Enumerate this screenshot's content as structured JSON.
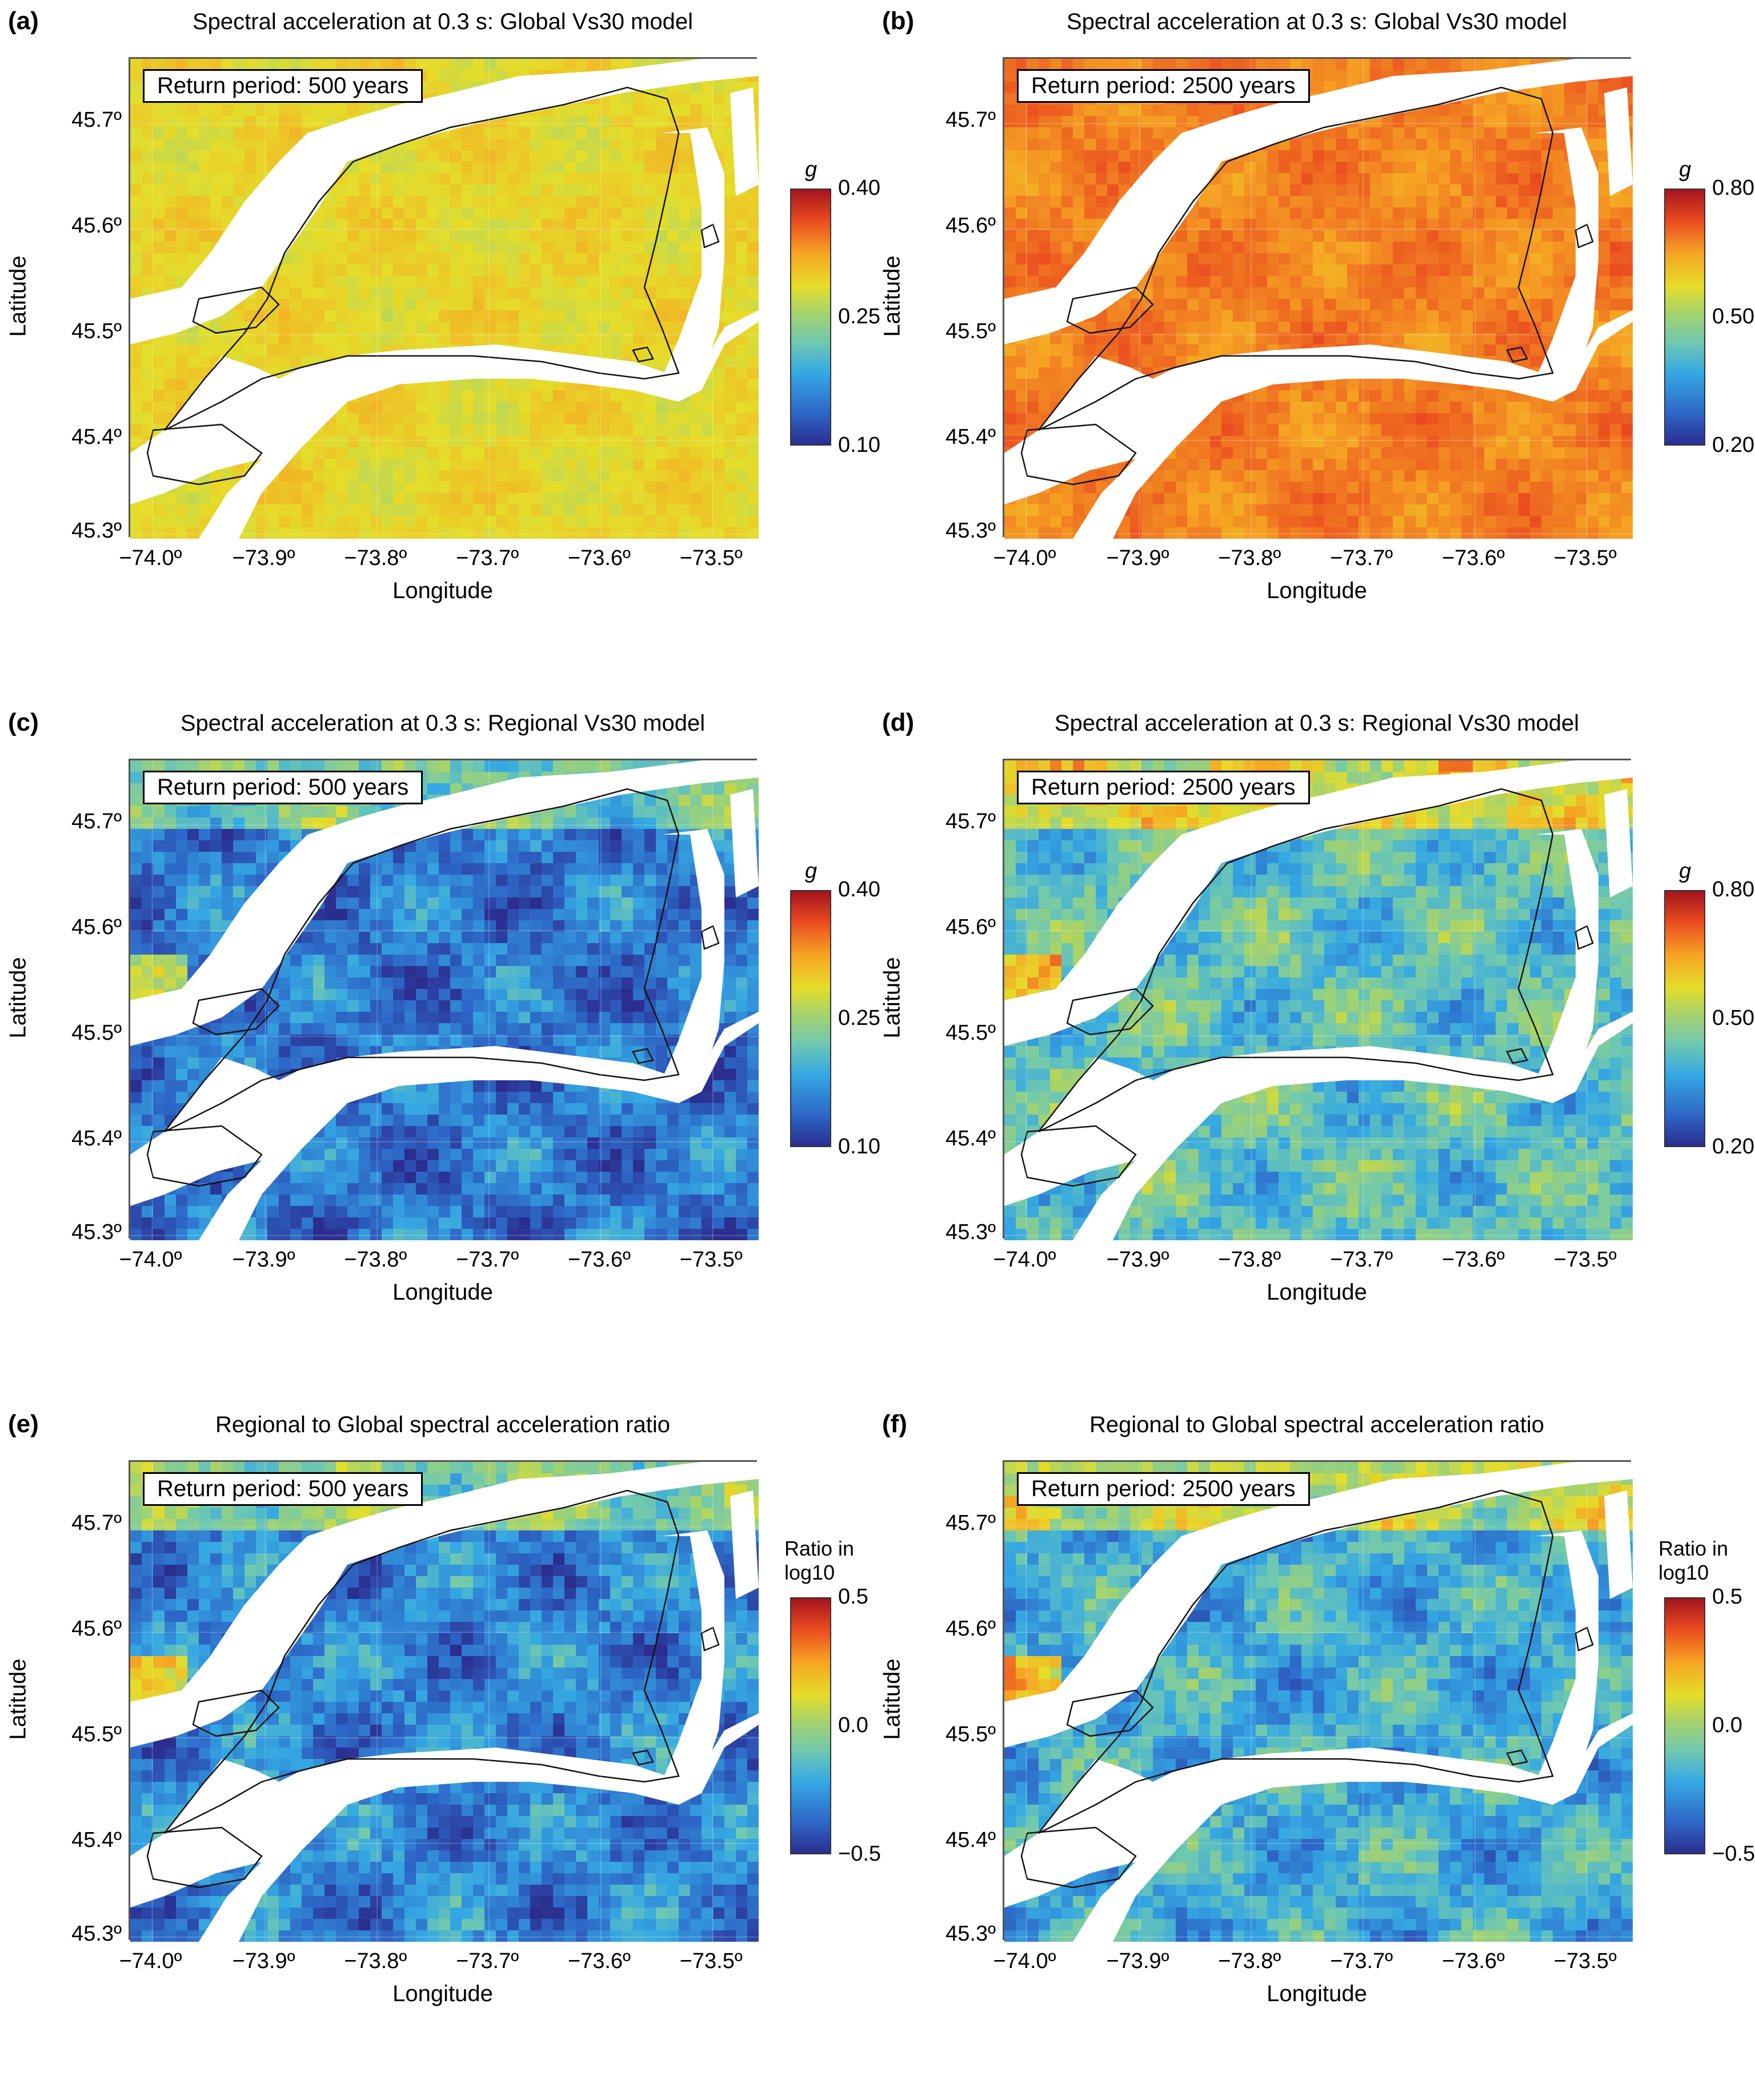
{
  "palette": {
    "jet_low": "#2b2e8f",
    "jet_mid": "#a7d36a",
    "jet_high": "#a3141e",
    "global500": "#c9dd3c",
    "global2500": "#ee6a27",
    "regional500": "#3552b5",
    "regional2500": "#56bde0",
    "ratio500": "#3f7fd0",
    "ratio2500": "#5cb6e6",
    "water": "#ffffff"
  },
  "common": {
    "x_axis_label": "Longitude",
    "y_axis_label": "Latitude",
    "x_ticks": [
      "−74.0º",
      "−73.9º",
      "−73.8º",
      "−73.7º",
      "−73.6º",
      "−73.5º"
    ],
    "y_ticks": [
      "45.7º",
      "45.6º",
      "45.5º",
      "45.4º",
      "45.3º"
    ]
  },
  "chart_data": [
    {
      "type": "heatmap",
      "panel": "(a)",
      "title": "Spectral acceleration at 0.3 s: Global Vs30 model",
      "return_period": "Return period: 500 years",
      "xlabel": "Longitude",
      "ylabel": "Latitude",
      "xlim": [
        -74.02,
        -73.45
      ],
      "ylim": [
        45.29,
        45.75
      ],
      "colorbar": {
        "unit": "g",
        "ticks": [
          "0.40",
          "0.25",
          "0.10"
        ],
        "range": [
          0.1,
          0.4
        ]
      },
      "dominant_value": 0.29
    },
    {
      "type": "heatmap",
      "panel": "(b)",
      "title": "Spectral acceleration at 0.3 s: Global Vs30 model",
      "return_period": "Return period: 2500 years",
      "xlabel": "Longitude",
      "ylabel": "Latitude",
      "xlim": [
        -74.02,
        -73.45
      ],
      "ylim": [
        45.29,
        45.75
      ],
      "colorbar": {
        "unit": "g",
        "ticks": [
          "0.80",
          "0.50",
          "0.20"
        ],
        "range": [
          0.2,
          0.8
        ]
      },
      "dominant_value": 0.68
    },
    {
      "type": "heatmap",
      "panel": "(c)",
      "title": "Spectral acceleration at 0.3 s: Regional Vs30 model",
      "return_period": "Return period: 500 years",
      "xlabel": "Longitude",
      "ylabel": "Latitude",
      "xlim": [
        -74.02,
        -73.45
      ],
      "ylim": [
        45.29,
        45.75
      ],
      "colorbar": {
        "unit": "g",
        "ticks": [
          "0.40",
          "0.25",
          "0.10"
        ],
        "range": [
          0.1,
          0.4
        ]
      },
      "dominant_value": 0.15
    },
    {
      "type": "heatmap",
      "panel": "(d)",
      "title": "Spectral acceleration at 0.3 s: Regional Vs30 model",
      "return_period": "Return period: 2500 years",
      "xlabel": "Longitude",
      "ylabel": "Latitude",
      "xlim": [
        -74.02,
        -73.45
      ],
      "ylim": [
        45.29,
        45.75
      ],
      "colorbar": {
        "unit": "g",
        "ticks": [
          "0.80",
          "0.50",
          "0.20"
        ],
        "range": [
          0.2,
          0.8
        ]
      },
      "dominant_value": 0.42
    },
    {
      "type": "heatmap",
      "panel": "(e)",
      "title": "Regional to Global spectral acceleration ratio",
      "return_period": "Return period: 500 years",
      "xlabel": "Longitude",
      "ylabel": "Latitude",
      "xlim": [
        -74.02,
        -73.45
      ],
      "ylim": [
        45.29,
        45.75
      ],
      "colorbar": {
        "unit": "Ratio in\nlog10",
        "ticks": [
          "0.5",
          "0.0",
          "−0.5"
        ],
        "range": [
          -0.5,
          0.5
        ]
      },
      "dominant_value": -0.3
    },
    {
      "type": "heatmap",
      "panel": "(f)",
      "title": "Regional to Global spectral acceleration ratio",
      "return_period": "Return period: 2500 years",
      "xlabel": "Longitude",
      "ylabel": "Latitude",
      "xlim": [
        -74.02,
        -73.45
      ],
      "ylim": [
        45.29,
        45.75
      ],
      "colorbar": {
        "unit": "Ratio in\nlog10",
        "ticks": [
          "0.5",
          "0.0",
          "−0.5"
        ],
        "range": [
          -0.5,
          0.5
        ]
      },
      "dominant_value": -0.2
    }
  ]
}
